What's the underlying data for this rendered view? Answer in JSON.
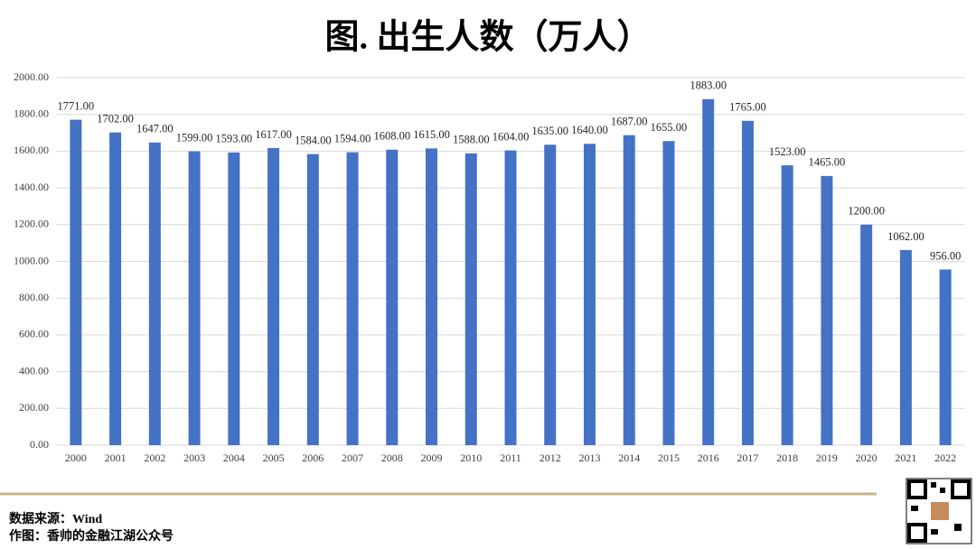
{
  "chart_data": {
    "type": "bar",
    "title": "图. 出生人数（万人）",
    "categories": [
      "2000",
      "2001",
      "2002",
      "2003",
      "2004",
      "2005",
      "2006",
      "2007",
      "2008",
      "2009",
      "2010",
      "2011",
      "2012",
      "2013",
      "2014",
      "2015",
      "2016",
      "2017",
      "2018",
      "2019",
      "2020",
      "2021",
      "2022"
    ],
    "values": [
      1771,
      1702,
      1647,
      1599,
      1593,
      1617,
      1584,
      1594,
      1608,
      1615,
      1588,
      1604,
      1635,
      1640,
      1687,
      1655,
      1883,
      1765,
      1523,
      1465,
      1200,
      1062,
      956
    ],
    "value_labels": [
      "1771.00",
      "1702.00",
      "1647.00",
      "1599.00",
      "1593.00",
      "1617.00",
      "1584.00",
      "1594.00",
      "1608.00",
      "1615.00",
      "1588.00",
      "1604.00",
      "1635.00",
      "1640.00",
      "1687.00",
      "1655.00",
      "1883.00",
      "1765.00",
      "1523.00",
      "1465.00",
      "1200.00",
      "1062.00",
      "956.00"
    ],
    "color": "#4472c4",
    "ylim": [
      0,
      2000
    ],
    "yticks": [
      {
        "value": 0,
        "label": "0.00"
      },
      {
        "value": 200,
        "label": "200.00"
      },
      {
        "value": 400,
        "label": "400.00"
      },
      {
        "value": 600,
        "label": "600.00"
      },
      {
        "value": 800,
        "label": "800.00"
      },
      {
        "value": 1000,
        "label": "1000.00"
      },
      {
        "value": 1200,
        "label": "1200.00"
      },
      {
        "value": 1400,
        "label": "1400.00"
      },
      {
        "value": 1600,
        "label": "1600.00"
      },
      {
        "value": 1800,
        "label": "1800.00"
      },
      {
        "value": 2000,
        "label": "2000.00"
      }
    ],
    "grid": true
  },
  "footer": {
    "source": "数据来源：Wind",
    "author": "作图：香帅的金融江湖公众号"
  }
}
